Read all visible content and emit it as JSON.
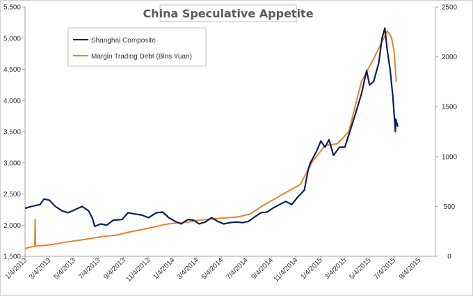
{
  "chart_data": {
    "type": "line",
    "title": "China Speculative Appetite",
    "xlabel": "",
    "ylabel": "",
    "grid": false,
    "legend_position": "top-left",
    "x_ticks": [
      "1/4/2013",
      "3/4/2013",
      "5/4/2013",
      "7/4/2013",
      "9/4/2013",
      "11/4/2013",
      "1/4/2014",
      "3/4/2014",
      "5/4/2014",
      "7/4/2014",
      "9/4/2014",
      "11/4/2014",
      "1/4/2015",
      "3/4/2015",
      "5/4/2015",
      "7/4/2015",
      "9/4/2015"
    ],
    "x_range": [
      "1/4/2013",
      "10/15/2015"
    ],
    "y_left": {
      "range": [
        1500,
        5500
      ],
      "ticks": [
        "1,500",
        "2,000",
        "2,500",
        "3,000",
        "3,500",
        "4,000",
        "4,500",
        "5,000",
        "5,500"
      ]
    },
    "y_right": {
      "range": [
        0,
        2500
      ],
      "ticks": [
        "0",
        "500",
        "1000",
        "1500",
        "2000",
        "2500"
      ]
    },
    "series": [
      {
        "name": "Shanghai Composite",
        "color": "#0b1f5c",
        "axis": "left",
        "points": [
          [
            "2013-01-04",
            2270
          ],
          [
            "2013-01-20",
            2300
          ],
          [
            "2013-02-10",
            2330
          ],
          [
            "2013-02-20",
            2420
          ],
          [
            "2013-03-05",
            2400
          ],
          [
            "2013-03-20",
            2300
          ],
          [
            "2013-04-05",
            2230
          ],
          [
            "2013-04-20",
            2200
          ],
          [
            "2013-05-05",
            2240
          ],
          [
            "2013-05-25",
            2300
          ],
          [
            "2013-06-10",
            2230
          ],
          [
            "2013-06-20",
            2100
          ],
          [
            "2013-06-25",
            1980
          ],
          [
            "2013-07-10",
            2020
          ],
          [
            "2013-07-25",
            2000
          ],
          [
            "2013-08-10",
            2080
          ],
          [
            "2013-09-01",
            2090
          ],
          [
            "2013-09-15",
            2200
          ],
          [
            "2013-10-01",
            2180
          ],
          [
            "2013-10-20",
            2160
          ],
          [
            "2013-11-05",
            2120
          ],
          [
            "2013-11-25",
            2200
          ],
          [
            "2013-12-10",
            2210
          ],
          [
            "2013-12-25",
            2120
          ],
          [
            "2014-01-10",
            2060
          ],
          [
            "2014-01-25",
            2020
          ],
          [
            "2014-02-10",
            2090
          ],
          [
            "2014-02-25",
            2080
          ],
          [
            "2014-03-10",
            2020
          ],
          [
            "2014-03-25",
            2050
          ],
          [
            "2014-04-10",
            2120
          ],
          [
            "2014-04-25",
            2060
          ],
          [
            "2014-05-10",
            2020
          ],
          [
            "2014-05-25",
            2040
          ],
          [
            "2014-06-10",
            2050
          ],
          [
            "2014-06-25",
            2040
          ],
          [
            "2014-07-10",
            2060
          ],
          [
            "2014-07-25",
            2130
          ],
          [
            "2014-08-10",
            2200
          ],
          [
            "2014-08-25",
            2210
          ],
          [
            "2014-09-10",
            2280
          ],
          [
            "2014-09-25",
            2330
          ],
          [
            "2014-10-10",
            2380
          ],
          [
            "2014-10-25",
            2330
          ],
          [
            "2014-11-10",
            2460
          ],
          [
            "2014-11-25",
            2560
          ],
          [
            "2014-12-05",
            2900
          ],
          [
            "2014-12-10",
            3000
          ],
          [
            "2014-12-25",
            3180
          ],
          [
            "2015-01-05",
            3350
          ],
          [
            "2015-01-15",
            3250
          ],
          [
            "2015-01-25",
            3370
          ],
          [
            "2015-02-05",
            3120
          ],
          [
            "2015-02-20",
            3250
          ],
          [
            "2015-03-05",
            3250
          ],
          [
            "2015-03-20",
            3550
          ],
          [
            "2015-04-01",
            3800
          ],
          [
            "2015-04-15",
            4100
          ],
          [
            "2015-04-28",
            4480
          ],
          [
            "2015-05-05",
            4250
          ],
          [
            "2015-05-15",
            4300
          ],
          [
            "2015-05-28",
            4600
          ],
          [
            "2015-06-05",
            5000
          ],
          [
            "2015-06-12",
            5160
          ],
          [
            "2015-06-18",
            4800
          ],
          [
            "2015-06-25",
            4500
          ],
          [
            "2015-07-02",
            4050
          ],
          [
            "2015-07-08",
            3500
          ],
          [
            "2015-07-09",
            3700
          ],
          [
            "2015-07-14",
            3580
          ]
        ]
      },
      {
        "name": "Margin Trading Debt (Blns Yuan)",
        "color": "#e8822c",
        "axis": "right",
        "points": [
          [
            "2013-01-04",
            78
          ],
          [
            "2013-01-20",
            95
          ],
          [
            "2013-01-28",
            102
          ],
          [
            "2013-01-29",
            370
          ],
          [
            "2013-01-30",
            102
          ],
          [
            "2013-02-20",
            108
          ],
          [
            "2013-03-15",
            120
          ],
          [
            "2013-04-15",
            142
          ],
          [
            "2013-05-15",
            160
          ],
          [
            "2013-06-15",
            178
          ],
          [
            "2013-07-15",
            200
          ],
          [
            "2013-08-15",
            210
          ],
          [
            "2013-09-15",
            240
          ],
          [
            "2013-10-15",
            265
          ],
          [
            "2013-11-15",
            290
          ],
          [
            "2013-12-15",
            320
          ],
          [
            "2014-01-15",
            335
          ],
          [
            "2014-02-15",
            345
          ],
          [
            "2014-03-15",
            365
          ],
          [
            "2014-04-15",
            375
          ],
          [
            "2014-05-15",
            385
          ],
          [
            "2014-06-15",
            395
          ],
          [
            "2014-07-15",
            425
          ],
          [
            "2014-08-15",
            510
          ],
          [
            "2014-09-15",
            580
          ],
          [
            "2014-10-15",
            650
          ],
          [
            "2014-11-15",
            720
          ],
          [
            "2014-12-15",
            950
          ],
          [
            "2015-01-15",
            1110
          ],
          [
            "2015-02-15",
            1130
          ],
          [
            "2015-03-15",
            1250
          ],
          [
            "2015-04-15",
            1750
          ],
          [
            "2015-05-15",
            1980
          ],
          [
            "2015-06-05",
            2150
          ],
          [
            "2015-06-18",
            2260
          ],
          [
            "2015-06-28",
            2200
          ],
          [
            "2015-07-05",
            2050
          ],
          [
            "2015-07-10",
            1750
          ]
        ]
      }
    ]
  }
}
